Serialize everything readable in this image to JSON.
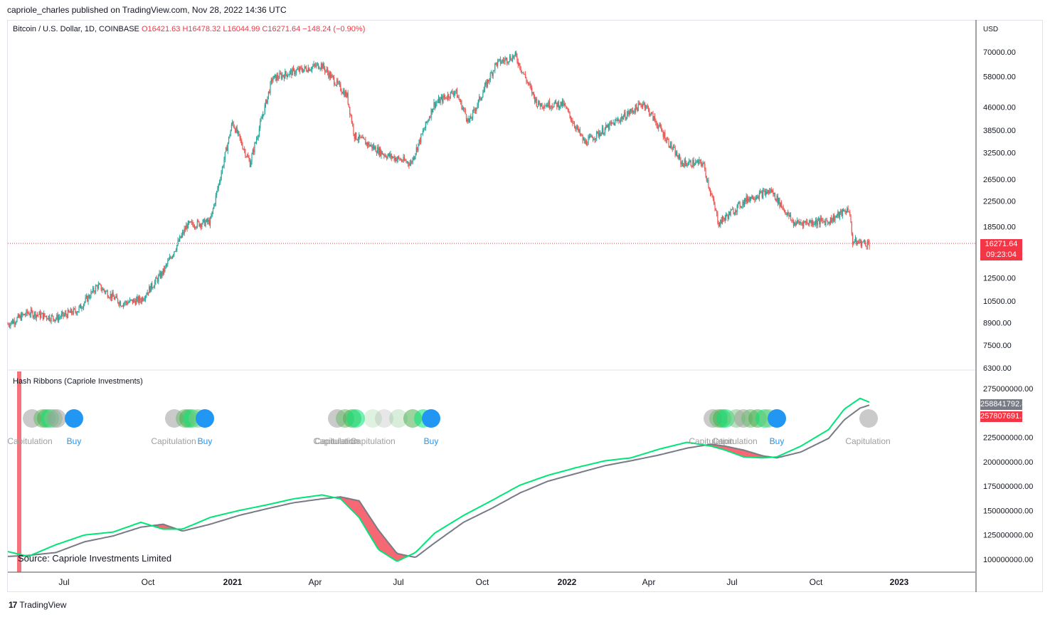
{
  "publisher_line": "capriole_charles published on TradingView.com, Nov 28, 2022 14:36 UTC",
  "symbol": {
    "name": "Bitcoin / U.S. Dollar, 1D, COINBASE",
    "open": "O16421.63",
    "high": "H16478.32",
    "low": "L16044.99",
    "close": "C16271.64",
    "change": "−148.24 (−0.90%)"
  },
  "price_axis": {
    "currency": "USD",
    "ticks": [
      "70000.00",
      "58000.00",
      "46000.00",
      "38500.00",
      "32500.00",
      "26500.00",
      "22500.00",
      "18500.00",
      "12500.00",
      "10500.00",
      "8900.00",
      "7500.00",
      "6300.00"
    ]
  },
  "last_price": {
    "value": "16271.64",
    "countdown": "09:23:04",
    "color": "#f23645"
  },
  "indicator": {
    "title": "Hash Ribbons (Capriole Investments)",
    "ticks": [
      "275000000.00",
      "225000000.00",
      "200000000.00",
      "175000000.00",
      "150000000.00",
      "125000000.00",
      "100000000.00"
    ],
    "value_a": "258841792.80",
    "value_b": "257807691.25",
    "signals": [
      {
        "label": "Capitulation",
        "color": "#9e9e9e"
      },
      {
        "label": "Buy",
        "color": "#2196f3"
      },
      {
        "label": "Capitulation",
        "color": "#9e9e9e"
      },
      {
        "label": "Buy",
        "color": "#2196f3"
      },
      {
        "label": "Capitulation",
        "color": "#9e9e9e"
      },
      {
        "label": "Capitulation",
        "color": "#9e9e9e"
      },
      {
        "label": "Capitulation",
        "color": "#9e9e9e"
      },
      {
        "label": "Buy",
        "color": "#2196f3"
      },
      {
        "label": "Capitulation",
        "color": "#9e9e9e"
      },
      {
        "label": "Capitulation",
        "color": "#9e9e9e"
      },
      {
        "label": "Buy",
        "color": "#2196f3"
      },
      {
        "label": "Capitulation",
        "color": "#9e9e9e"
      }
    ]
  },
  "source_text": "Source: Capriole Investments Limited",
  "time_axis": [
    "Jul",
    "Oct",
    "2021",
    "Apr",
    "Jul",
    "Oct",
    "2022",
    "Apr",
    "Jul",
    "Oct",
    "2023"
  ],
  "footer_brand": "TradingView",
  "colors": {
    "up": "#26a69a",
    "down": "#ef5350",
    "fast_ma": "#00e676",
    "slow_ma": "#787b86",
    "fill_red": "#f23645"
  },
  "chart_data": [
    {
      "type": "candlestick",
      "title": "Bitcoin / U.S. Dollar, 1D, COINBASE",
      "scale": "log",
      "ylim": [
        6300,
        70000
      ],
      "close_path": {
        "x": [
          "2020-05-10",
          "2020-06-01",
          "2020-07-01",
          "2020-07-25",
          "2020-08-15",
          "2020-09-10",
          "2020-10-01",
          "2020-10-25",
          "2020-11-20",
          "2020-12-15",
          "2021-01-08",
          "2021-01-27",
          "2021-02-20",
          "2021-03-13",
          "2021-04-14",
          "2021-05-12",
          "2021-05-20",
          "2021-06-22",
          "2021-07-20",
          "2021-08-14",
          "2021-09-06",
          "2021-09-21",
          "2021-10-20",
          "2021-11-10",
          "2021-12-04",
          "2022-01-01",
          "2022-01-24",
          "2022-03-29",
          "2022-05-09",
          "2022-06-01",
          "2022-06-18",
          "2022-07-20",
          "2022-08-14",
          "2022-09-07",
          "2022-10-15",
          "2022-11-06",
          "2022-11-10",
          "2022-11-28"
        ],
        "y": [
          8800,
          9600,
          9200,
          9800,
          11800,
          10300,
          10600,
          13100,
          18700,
          19200,
          41000,
          30000,
          57000,
          60000,
          63500,
          50000,
          37000,
          32000,
          30000,
          47000,
          52000,
          41000,
          64000,
          68000,
          47000,
          47000,
          35000,
          47500,
          30000,
          30000,
          19000,
          23000,
          24300,
          19000,
          19300,
          21200,
          16500,
          16271
        ]
      }
    },
    {
      "type": "line",
      "title": "Hash Ribbons (Capriole Investments)",
      "ylim": [
        90000000,
        285000000
      ],
      "series": [
        {
          "color": "#00e676",
          "x": [
            "2020-05-10",
            "2020-06-01",
            "2020-07-01",
            "2020-08-01",
            "2020-09-01",
            "2020-10-01",
            "2020-10-25",
            "2020-11-15",
            "2020-12-15",
            "2021-01-15",
            "2021-02-15",
            "2021-03-15",
            "2021-04-15",
            "2021-05-05",
            "2021-05-25",
            "2021-06-15",
            "2021-07-05",
            "2021-07-25",
            "2021-08-15",
            "2021-09-15",
            "2021-10-15",
            "2021-11-15",
            "2021-12-15",
            "2022-01-15",
            "2022-02-15",
            "2022-03-15",
            "2022-04-15",
            "2022-05-15",
            "2022-06-10",
            "2022-06-25",
            "2022-07-15",
            "2022-08-05",
            "2022-08-20",
            "2022-09-15",
            "2022-10-15",
            "2022-11-01",
            "2022-11-18",
            "2022-11-28"
          ],
          "y": [
            108000000,
            103000000,
            115000000,
            125000000,
            128000000,
            138000000,
            131000000,
            131000000,
            143000000,
            150000000,
            156000000,
            162000000,
            166000000,
            162000000,
            143000000,
            110000000,
            98000000,
            107000000,
            127000000,
            145000000,
            160000000,
            176000000,
            186000000,
            194000000,
            201000000,
            204000000,
            213000000,
            220000000,
            216000000,
            212000000,
            205000000,
            204000000,
            205000000,
            216000000,
            233000000,
            254000000,
            265000000,
            261000000
          ]
        },
        {
          "color": "#787b86",
          "x": [
            "2020-05-10",
            "2020-06-01",
            "2020-07-01",
            "2020-08-01",
            "2020-09-01",
            "2020-10-01",
            "2020-10-25",
            "2020-11-15",
            "2020-12-15",
            "2021-01-15",
            "2021-02-15",
            "2021-03-15",
            "2021-04-15",
            "2021-05-05",
            "2021-05-25",
            "2021-06-15",
            "2021-07-05",
            "2021-07-25",
            "2021-08-15",
            "2021-09-15",
            "2021-10-15",
            "2021-11-15",
            "2021-12-15",
            "2022-01-15",
            "2022-02-15",
            "2022-03-15",
            "2022-04-15",
            "2022-05-15",
            "2022-06-10",
            "2022-06-25",
            "2022-07-15",
            "2022-08-05",
            "2022-08-20",
            "2022-09-15",
            "2022-10-15",
            "2022-11-01",
            "2022-11-18",
            "2022-11-28"
          ],
          "y": [
            103000000,
            104000000,
            107000000,
            118000000,
            124000000,
            133000000,
            136000000,
            129000000,
            136000000,
            145000000,
            152000000,
            158000000,
            162000000,
            164000000,
            160000000,
            130000000,
            106000000,
            102000000,
            117000000,
            138000000,
            152000000,
            168000000,
            180000000,
            188000000,
            196000000,
            201000000,
            207000000,
            214000000,
            218000000,
            216000000,
            212000000,
            206000000,
            204000000,
            210000000,
            224000000,
            243000000,
            255000000,
            258000000
          ]
        }
      ]
    }
  ]
}
